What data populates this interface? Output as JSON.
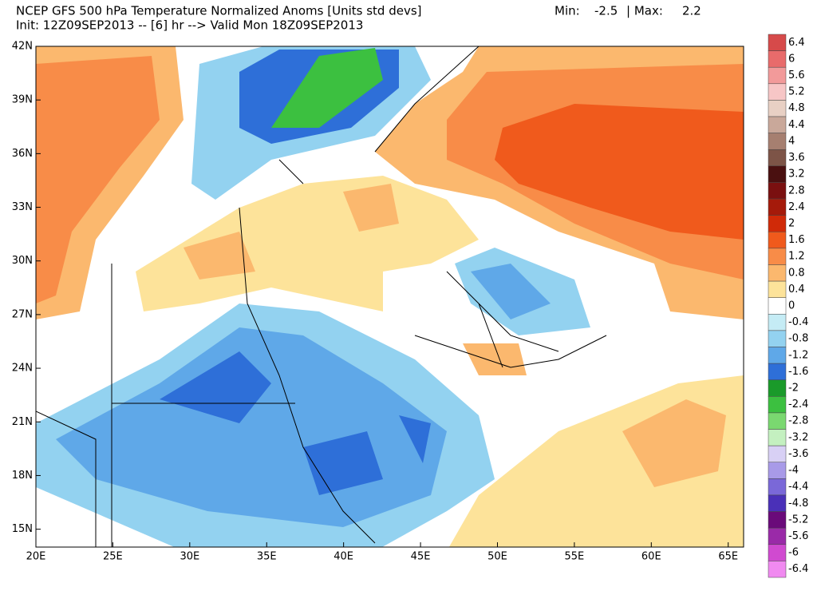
{
  "header": {
    "title": "NCEP GFS 500 hPa Temperature Normalized Anoms [Units std devs]",
    "min_label": "Min:",
    "min": -2.5,
    "max_label": "| Max:",
    "max": 2.2,
    "subtitle": "Init: 12Z09SEP2013 -- [6] hr --> Valid Mon 18Z09SEP2013"
  },
  "map": {
    "xlim": [
      20,
      66
    ],
    "ylim": [
      14,
      42
    ],
    "xticks": [
      {
        "value": 20,
        "label": "20E"
      },
      {
        "value": 25,
        "label": "25E"
      },
      {
        "value": 30,
        "label": "30E"
      },
      {
        "value": 35,
        "label": "35E"
      },
      {
        "value": 40,
        "label": "40E"
      },
      {
        "value": 45,
        "label": "45E"
      },
      {
        "value": 50,
        "label": "50E"
      },
      {
        "value": 55,
        "label": "55E"
      },
      {
        "value": 60,
        "label": "60E"
      },
      {
        "value": 65,
        "label": "65E"
      }
    ],
    "yticks": [
      {
        "value": 42,
        "label": "42N"
      },
      {
        "value": 39,
        "label": "39N"
      },
      {
        "value": 36,
        "label": "36N"
      },
      {
        "value": 33,
        "label": "33N"
      },
      {
        "value": 30,
        "label": "30N"
      },
      {
        "value": 27,
        "label": "27N"
      },
      {
        "value": 24,
        "label": "24N"
      },
      {
        "value": 21,
        "label": "21N"
      },
      {
        "value": 18,
        "label": "18N"
      },
      {
        "value": 15,
        "label": "15N"
      }
    ]
  },
  "colorbar": {
    "levels": [
      6.4,
      6,
      5.6,
      5.2,
      4.8,
      4.4,
      4,
      3.6,
      3.2,
      2.8,
      2.4,
      2,
      1.6,
      1.2,
      0.8,
      0.4,
      0,
      -0.4,
      -0.8,
      -1.2,
      -1.6,
      -2,
      -2.4,
      -2.8,
      -3.2,
      -3.6,
      -4,
      -4.4,
      -4.8,
      -5.2,
      -5.6,
      -6,
      -6.4
    ],
    "colors": [
      "#d64a4a",
      "#e86b6b",
      "#f29a9a",
      "#f7c6c6",
      "#e8d0c4",
      "#c9a89a",
      "#a67f70",
      "#7d5447",
      "#4a1010",
      "#7a1010",
      "#a51a0a",
      "#d02a08",
      "#f05a1c",
      "#f88c48",
      "#fbb86e",
      "#fde39a",
      "#ffffff",
      "#c5ecf5",
      "#93d2f0",
      "#5fa8e8",
      "#2e6fd8",
      "#1a9a2a",
      "#3cc040",
      "#7ad870",
      "#c4f0c0",
      "#d8d0f5",
      "#a89ae8",
      "#7a68d8",
      "#4a30b8",
      "#6a0a7a",
      "#9a2aa8",
      "#d04ad0",
      "#f08af0"
    ]
  }
}
